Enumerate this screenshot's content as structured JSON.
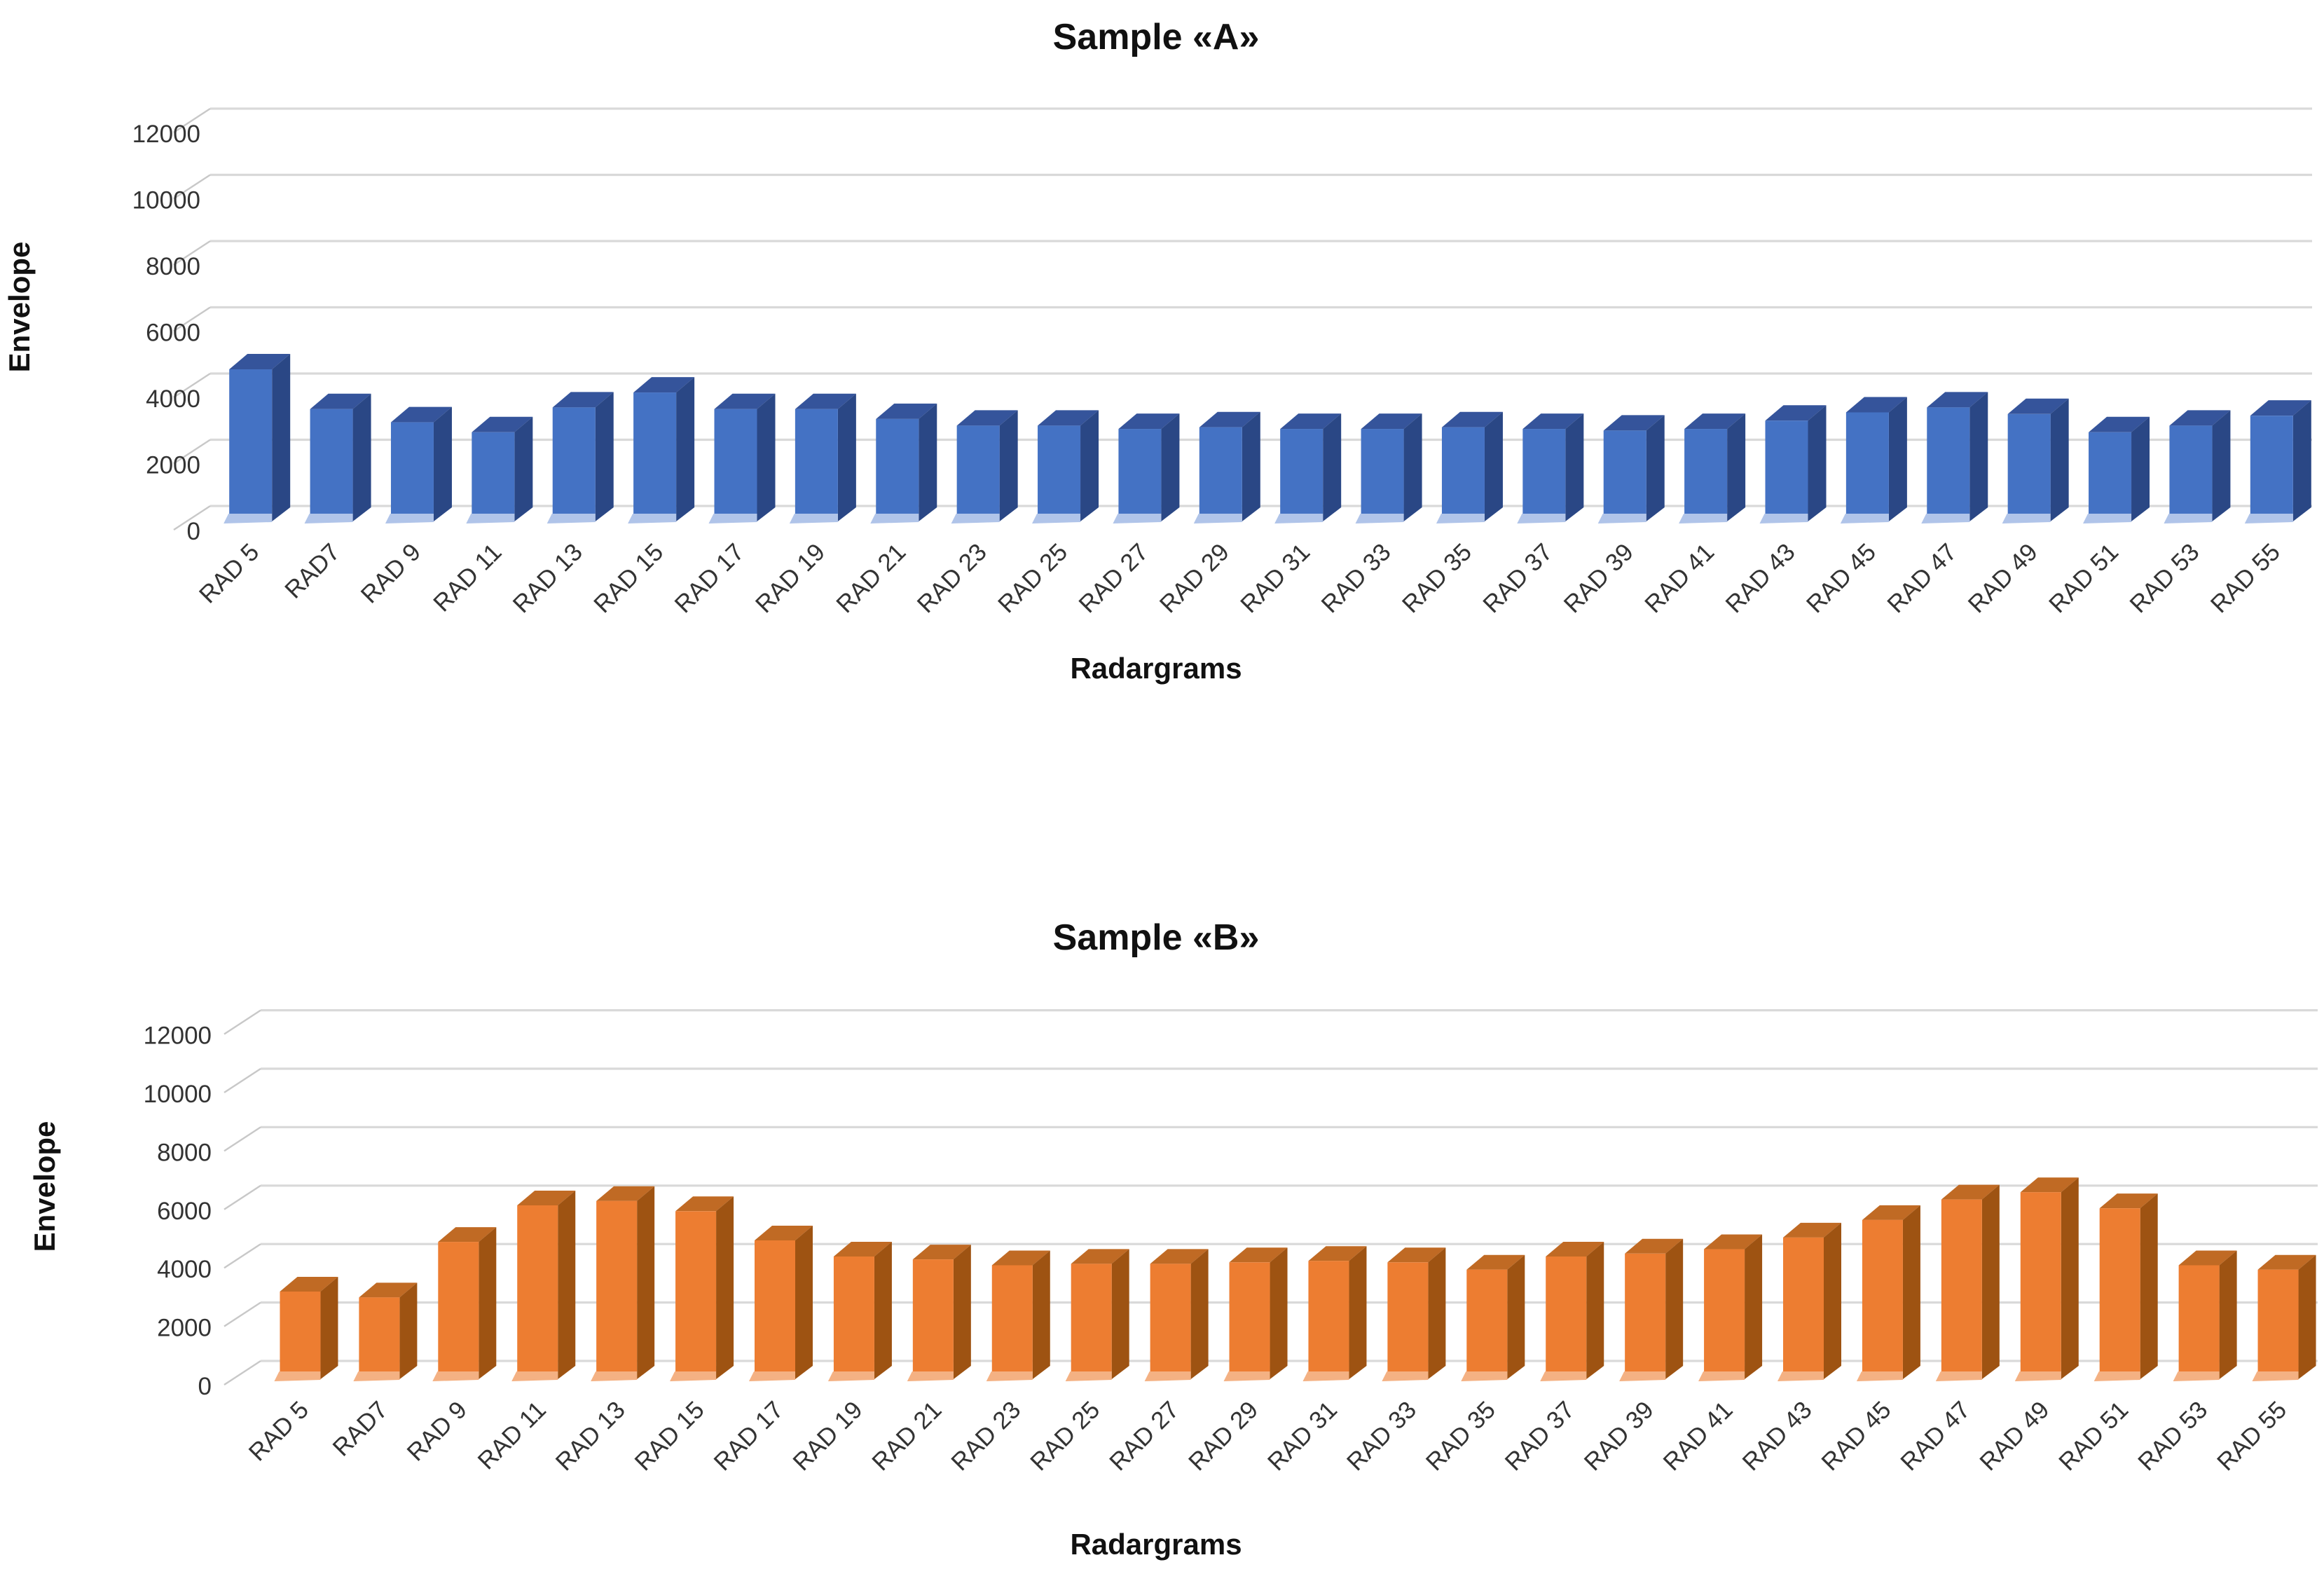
{
  "figure": {
    "background": "#ffffff",
    "gridline_color": "#D9D9D9",
    "connector_color": "#C8C8C8",
    "text_color": "#333333"
  },
  "chart_data": [
    {
      "type": "bar",
      "style": "3d-column",
      "title": "Sample «A»",
      "ylabel": "Envelope",
      "xlabel": "Radargrams",
      "ylim": [
        0,
        12000
      ],
      "yticks": [
        0,
        2000,
        4000,
        6000,
        8000,
        10000,
        12000
      ],
      "grid": true,
      "legend": false,
      "categories": [
        "RAD 5",
        "RAD7",
        "RAD 9",
        "RAD 11",
        "RAD 13",
        "RAD 15",
        "RAD 17",
        "RAD 19",
        "RAD 21",
        "RAD 23",
        "RAD 25",
        "RAD 27",
        "RAD 29",
        "RAD 31",
        "RAD 33",
        "RAD 35",
        "RAD 37",
        "RAD 39",
        "RAD 41",
        "RAD 43",
        "RAD 45",
        "RAD 47",
        "RAD 49",
        "RAD 51",
        "RAD 53",
        "RAD 55"
      ],
      "values": [
        4550,
        3350,
        2950,
        2650,
        3400,
        3850,
        3350,
        3350,
        3050,
        2850,
        2850,
        2750,
        2800,
        2750,
        2750,
        2800,
        2750,
        2700,
        2750,
        3000,
        3250,
        3400,
        3200,
        2650,
        2850,
        3150
      ],
      "colors": {
        "front": "#4472C4",
        "side": "#2A4785",
        "top": "#35549B",
        "base_edge": "#B0C4E9"
      }
    },
    {
      "type": "bar",
      "style": "3d-column",
      "title": "Sample «B»",
      "ylabel": "Envelope",
      "xlabel": "Radargrams",
      "ylim": [
        0,
        12000
      ],
      "yticks": [
        0,
        2000,
        4000,
        6000,
        8000,
        10000,
        12000
      ],
      "grid": true,
      "legend": false,
      "categories": [
        "RAD 5",
        "RAD7",
        "RAD 9",
        "RAD 11",
        "RAD 13",
        "RAD 15",
        "RAD 17",
        "RAD 19",
        "RAD 21",
        "RAD 23",
        "RAD 25",
        "RAD 27",
        "RAD 29",
        "RAD 31",
        "RAD 33",
        "RAD 35",
        "RAD 37",
        "RAD 39",
        "RAD 41",
        "RAD 43",
        "RAD 45",
        "RAD 47",
        "RAD 49",
        "RAD 51",
        "RAD 53",
        "RAD 55"
      ],
      "values": [
        2950,
        2750,
        4650,
        5900,
        6050,
        5700,
        4700,
        4150,
        4050,
        3850,
        3900,
        3900,
        3950,
        4000,
        3950,
        3700,
        4150,
        4250,
        4400,
        4800,
        5400,
        6100,
        6350,
        5800,
        3850,
        3700
      ],
      "colors": {
        "front": "#ED7D31",
        "side": "#9E5312",
        "top": "#C06A24",
        "base_edge": "#F4B183"
      }
    }
  ]
}
